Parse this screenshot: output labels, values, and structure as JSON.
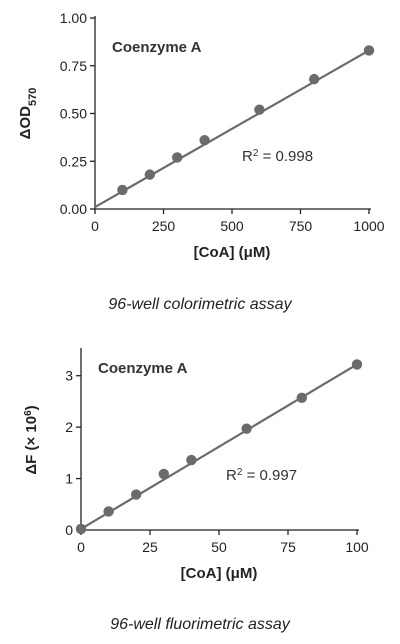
{
  "chart_data": [
    {
      "type": "scatter",
      "caption": "96-well colorimetric assay",
      "annotation": "Coenzyme A",
      "r2_label": "R",
      "r2_sup": "2",
      "r2_value": " = 0.998",
      "ylabel_main": "ΔOD",
      "ylabel_sub": "570",
      "xlabel": "[CoA] (μM)",
      "xlim": [
        0,
        1000
      ],
      "ylim": [
        0,
        1.0
      ],
      "xticks": [
        0,
        250,
        500,
        750,
        1000
      ],
      "xtick_labels": [
        "0",
        "250",
        "500",
        "750",
        "1000"
      ],
      "yticks": [
        0,
        0.25,
        0.5,
        0.75,
        1.0
      ],
      "ytick_labels": [
        "0.00",
        "0.25",
        "0.50",
        "0.75",
        "1.00"
      ],
      "points": [
        {
          "x": 100,
          "y": 0.1
        },
        {
          "x": 200,
          "y": 0.18
        },
        {
          "x": 300,
          "y": 0.27
        },
        {
          "x": 400,
          "y": 0.36
        },
        {
          "x": 600,
          "y": 0.52
        },
        {
          "x": 800,
          "y": 0.68
        },
        {
          "x": 1000,
          "y": 0.83
        }
      ],
      "fit": {
        "x0": 0,
        "y0": 0.01,
        "x1": 1000,
        "y1": 0.83
      },
      "color": "#6b6b6b"
    },
    {
      "type": "scatter",
      "caption": "96-well fluorimetric assay",
      "annotation": "Coenzyme A",
      "r2_label": "R",
      "r2_sup": "2",
      "r2_value": " = 0.997",
      "ylabel_main": "ΔF (× 10",
      "ylabel_sup": "6",
      "ylabel_end": ")",
      "xlabel": "[CoA] (μM)",
      "xlim": [
        0,
        100
      ],
      "ylim": [
        0,
        3.5
      ],
      "xticks": [
        0,
        25,
        50,
        75,
        100
      ],
      "xtick_labels": [
        "0",
        "25",
        "50",
        "75",
        "100"
      ],
      "yticks": [
        0,
        1,
        2,
        3
      ],
      "ytick_labels": [
        "0",
        "1",
        "2",
        "3"
      ],
      "points": [
        {
          "x": 0,
          "y": 0.02
        },
        {
          "x": 10,
          "y": 0.36
        },
        {
          "x": 20,
          "y": 0.69
        },
        {
          "x": 30,
          "y": 1.09
        },
        {
          "x": 40,
          "y": 1.36
        },
        {
          "x": 60,
          "y": 1.97
        },
        {
          "x": 80,
          "y": 2.57
        },
        {
          "x": 100,
          "y": 3.22
        }
      ],
      "fit": {
        "x0": 0,
        "y0": 0.02,
        "x1": 100,
        "y1": 3.22
      },
      "color": "#6b6b6b"
    }
  ]
}
